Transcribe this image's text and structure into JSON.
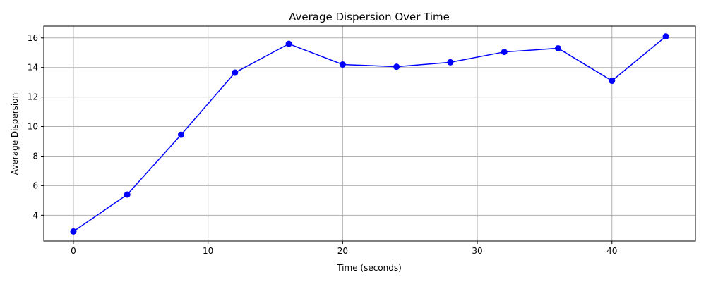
{
  "chart_data": {
    "type": "line",
    "title": "Average Dispersion Over Time",
    "xlabel": "Time (seconds)",
    "ylabel": "Average Dispersion",
    "x": [
      0,
      4,
      8,
      12,
      16,
      20,
      24,
      28,
      32,
      36,
      40,
      44
    ],
    "series": [
      {
        "values": [
          2.9,
          5.4,
          9.45,
          13.65,
          15.6,
          14.2,
          14.05,
          14.35,
          15.05,
          15.3,
          13.1,
          16.1
        ],
        "color": "#0000ff",
        "marker": "circle"
      }
    ],
    "xlim": [
      -2.2,
      46.2
    ],
    "ylim": [
      2.25,
      16.8
    ],
    "xticks": [
      0,
      10,
      20,
      30,
      40
    ],
    "yticks": [
      4,
      6,
      8,
      10,
      12,
      14,
      16
    ],
    "grid": true,
    "grid_color": "#b0b0b0",
    "axis_color": "#000000"
  }
}
